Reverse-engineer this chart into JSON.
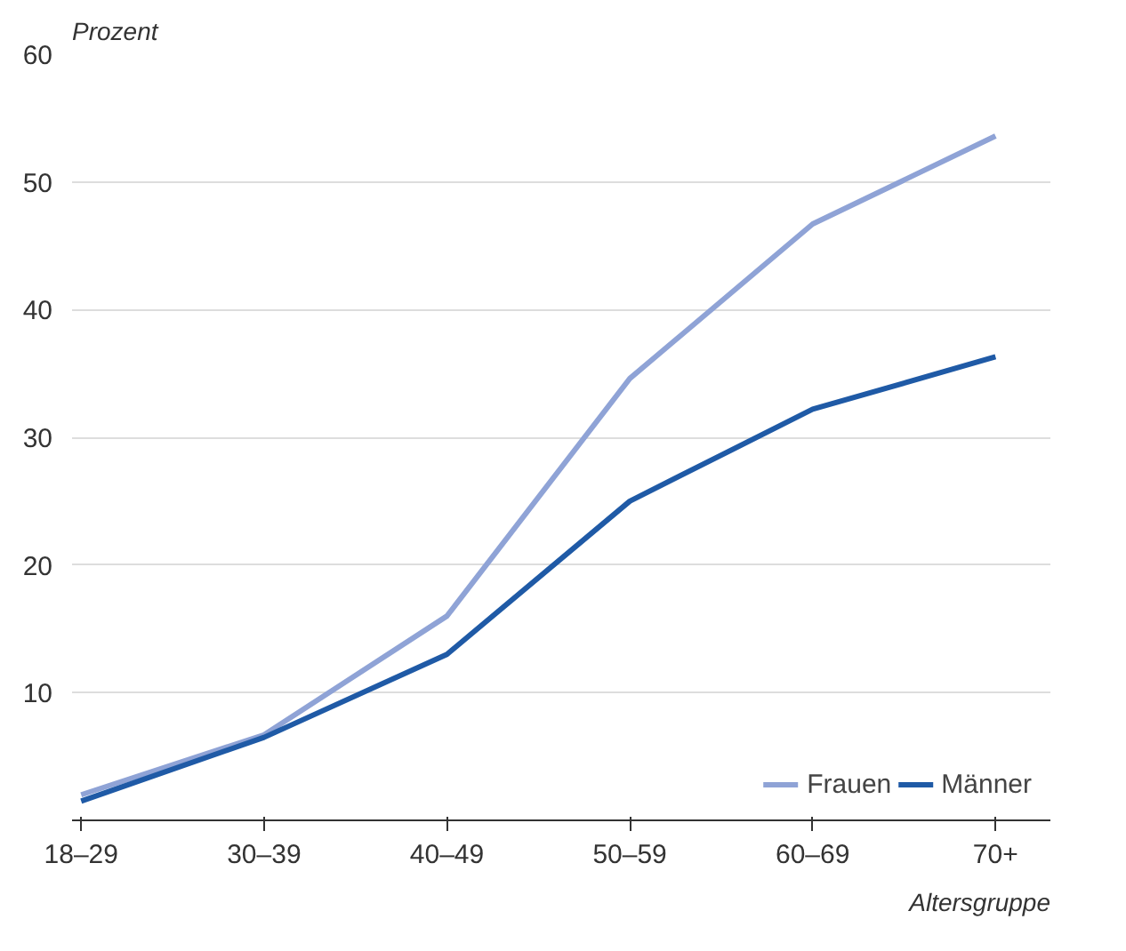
{
  "chart_data": {
    "type": "line",
    "ylabel": "Prozent",
    "xlabel": "Altersgruppe",
    "categories": [
      "18–29",
      "30–39",
      "40–49",
      "50–59",
      "60–69",
      "70+"
    ],
    "series": [
      {
        "name": "Frauen",
        "color": "#8fa3d6",
        "values": [
          2,
          6.7,
          16,
          34.6,
          46.7,
          53.6
        ]
      },
      {
        "name": "Männer",
        "color": "#1f5aa6",
        "values": [
          1.5,
          6.5,
          13,
          25,
          32.2,
          36.3
        ]
      }
    ],
    "ylim": [
      0,
      60
    ],
    "yticks": [
      10,
      20,
      30,
      40,
      50,
      60
    ],
    "grid": "y",
    "legend": "bottom right",
    "marker": "none",
    "line_style": "solid"
  }
}
